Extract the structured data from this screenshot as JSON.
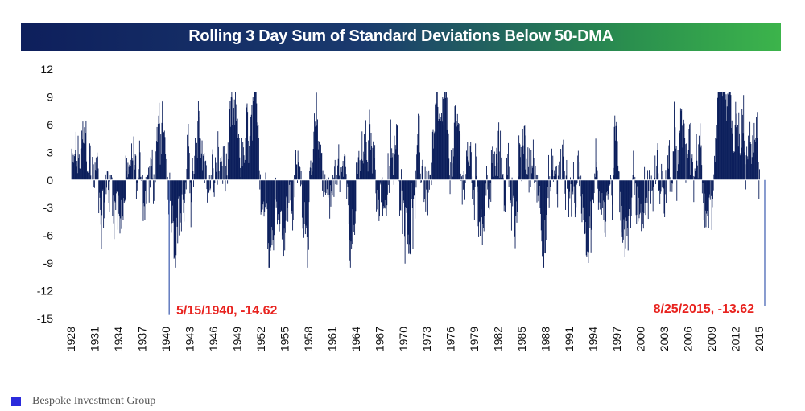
{
  "chart_data": {
    "type": "bar",
    "title": "Rolling 3 Day Sum of Standard Deviations Below 50-DMA",
    "xlabel": "",
    "ylabel": "",
    "ylim": [
      -15,
      12
    ],
    "yticks": [
      12,
      9,
      6,
      3,
      0,
      -3,
      -6,
      -9,
      -12,
      -15
    ],
    "xlim": [
      1928,
      2016
    ],
    "xticks": [
      "1928",
      "1931",
      "1934",
      "1937",
      "1940",
      "1943",
      "1946",
      "1949",
      "1952",
      "1955",
      "1958",
      "1961",
      "1964",
      "1967",
      "1970",
      "1973",
      "1976",
      "1979",
      "1982",
      "1985",
      "1988",
      "1991",
      "1994",
      "1997",
      "2000",
      "2003",
      "2006",
      "2009",
      "2012",
      "2015"
    ],
    "series": [
      {
        "name": "Rolling 3 Day Sum",
        "color": "#0c1f5c"
      }
    ],
    "annotations": [
      {
        "text": "5/15/1940, -14.62",
        "date": 1940.37,
        "value": -14.62,
        "color": "#e8231f"
      },
      {
        "text": "8/25/2015, -13.62",
        "date": 2015.65,
        "value": -13.62,
        "color": "#e8231f"
      }
    ]
  },
  "title": "Rolling 3 Day Sum of Standard Deviations Below 50-DMA",
  "footer": {
    "label": "Bespoke Investment Group",
    "brand_color": "#2b2bdc"
  }
}
